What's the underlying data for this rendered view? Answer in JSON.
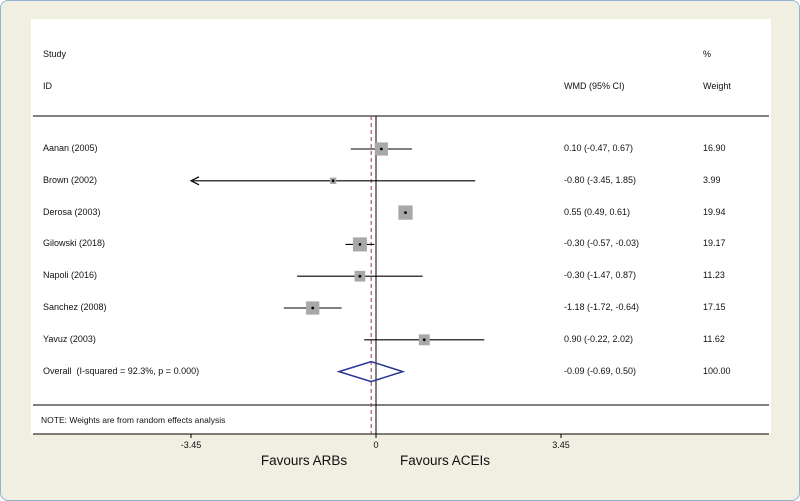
{
  "header": {
    "study": "Study",
    "id": "ID",
    "wmd": "WMD (95% CI)",
    "percent": "%",
    "weight": "Weight"
  },
  "note": "NOTE: Weights are from random effects analysis",
  "footer": {
    "favours_left": "Favours ARBs",
    "favours_right": "Favours ACEIs"
  },
  "colors": {
    "background": "#f1eee2",
    "frame": "#8fb3cf",
    "plot_bg": "#ffffff",
    "ci_line": "#000000",
    "marker": "#a8a8a8",
    "marker_dot": "#000000",
    "zero_line": "#000000",
    "overall_dash": "#9b3b3b",
    "diamond": "#283593",
    "rule": "#000000"
  },
  "chart_data": {
    "type": "forest",
    "title": "",
    "xlabel_left": "Favours ARBs",
    "xlabel_right": "Favours ACEIs",
    "effect_measure": "WMD (95% CI)",
    "axis": {
      "min": -3.45,
      "max": 3.45,
      "ticks": [
        -3.45,
        0,
        3.45
      ],
      "tick_labels": [
        "-3.45",
        "0",
        "3.45"
      ],
      "zero_line": 0,
      "overall_line": -0.09
    },
    "studies": [
      {
        "id": "Aanan (2005)",
        "wmd": 0.1,
        "lo": -0.47,
        "hi": 0.67,
        "ci_text": "0.10 (-0.47, 0.67)",
        "weight": 16.9,
        "weight_text": "16.90"
      },
      {
        "id": "Brown (2002)",
        "wmd": -0.8,
        "lo": -3.45,
        "hi": 1.85,
        "ci_text": "-0.80 (-3.45, 1.85)",
        "weight": 3.99,
        "weight_text": "3.99"
      },
      {
        "id": "Derosa (2003)",
        "wmd": 0.55,
        "lo": 0.49,
        "hi": 0.61,
        "ci_text": "0.55 (0.49, 0.61)",
        "weight": 19.94,
        "weight_text": "19.94"
      },
      {
        "id": "Gilowski (2018)",
        "wmd": -0.3,
        "lo": -0.57,
        "hi": -0.03,
        "ci_text": "-0.30 (-0.57, -0.03)",
        "weight": 19.17,
        "weight_text": "19.17"
      },
      {
        "id": "Napoli (2016)",
        "wmd": -0.3,
        "lo": -1.47,
        "hi": 0.87,
        "ci_text": "-0.30 (-1.47, 0.87)",
        "weight": 11.23,
        "weight_text": "11.23"
      },
      {
        "id": "Sanchez (2008)",
        "wmd": -1.18,
        "lo": -1.72,
        "hi": -0.64,
        "ci_text": "-1.18 (-1.72, -0.64)",
        "weight": 17.15,
        "weight_text": "17.15"
      },
      {
        "id": "Yavuz (2003)",
        "wmd": 0.9,
        "lo": -0.22,
        "hi": 2.02,
        "ci_text": "0.90 (-0.22, 2.02)",
        "weight": 11.62,
        "weight_text": "11.62"
      }
    ],
    "overall": {
      "label": "Overall  (I-squared = 92.3%, p = 0.000)",
      "wmd": -0.09,
      "lo": -0.69,
      "hi": 0.5,
      "ci_text": "-0.09 (-0.69, 0.50)",
      "weight_text": "100.00"
    }
  }
}
